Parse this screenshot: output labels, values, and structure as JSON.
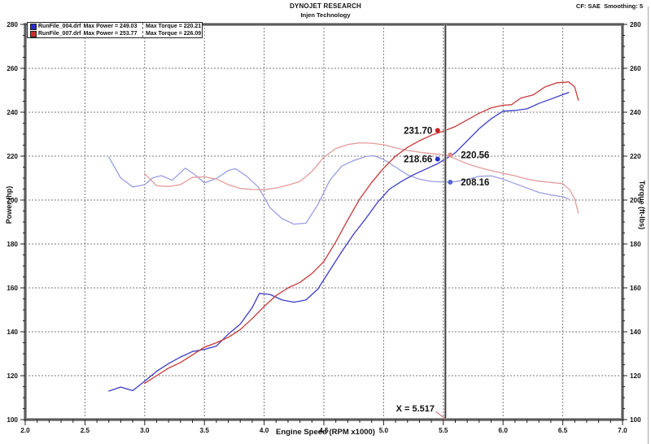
{
  "header": {
    "title": "DYNOJET RESEARCH",
    "subtitle": "Injen Technology",
    "top_right": "CF: SAE  Smoothing: 5"
  },
  "legend": {
    "rows": [
      {
        "swatch_color": "#2a2ad0",
        "file": "RunFile_004.drf",
        "power": "Max Power = 249.03",
        "torque": "Max Torque = 220.21"
      },
      {
        "swatch_color": "#d02a2a",
        "file": "RunFile_007.drf",
        "power": "Max Power = 253.77",
        "torque": "Max Torque = 226.09"
      }
    ]
  },
  "chart_data": {
    "type": "line",
    "title": "DYNOJET RESEARCH",
    "subtitle": "Injen Technology",
    "xlabel": "Engine Speed (RPM x1000)",
    "ylabel_left": "Power (hp)",
    "ylabel_right": "Torque (ft-lbs)",
    "xlim": [
      2.0,
      7.0
    ],
    "ylim": [
      100,
      280
    ],
    "x_major_ticks": [
      2.0,
      2.5,
      3.0,
      3.5,
      4.0,
      4.5,
      5.0,
      5.5,
      6.0,
      6.5,
      7.0
    ],
    "x_minor_step": 0.1,
    "y_major_ticks": [
      100,
      120,
      140,
      160,
      180,
      200,
      220,
      240,
      260,
      280
    ],
    "y_minor_step": 5,
    "grid": {
      "on": true,
      "style": "dashed",
      "color": "#787878"
    },
    "cursor": {
      "x": 5.517,
      "label": "X = 5.517"
    },
    "series": [
      {
        "name": "RunFile_004.drf Power",
        "unit": "hp",
        "axis": "left",
        "color": "#3c3cc8",
        "x": [
          2.7,
          2.8,
          2.9,
          3.0,
          3.1,
          3.2,
          3.3,
          3.4,
          3.5,
          3.6,
          3.7,
          3.8,
          3.9,
          3.96,
          4.05,
          4.15,
          4.25,
          4.35,
          4.45,
          4.55,
          4.65,
          4.75,
          4.85,
          4.95,
          5.05,
          5.15,
          5.25,
          5.35,
          5.45,
          5.517,
          5.6,
          5.7,
          5.8,
          5.9,
          6.0,
          6.1,
          6.2,
          6.3,
          6.4,
          6.5,
          6.55
        ],
        "y": [
          113.0,
          114.8,
          113.2,
          117.5,
          122.0,
          125.5,
          128.5,
          131.0,
          132.0,
          133.5,
          139.0,
          143.5,
          151.0,
          157.5,
          157.0,
          154.5,
          153.5,
          154.5,
          159.5,
          168.0,
          176.5,
          184.5,
          191.5,
          199.0,
          205.0,
          208.5,
          211.5,
          214.0,
          216.5,
          218.66,
          221.5,
          227.0,
          232.5,
          237.0,
          240.5,
          240.8,
          241.5,
          244.0,
          246.0,
          248.0,
          249.03
        ]
      },
      {
        "name": "RunFile_004.drf Torque",
        "unit": "ft-lbs",
        "axis": "right",
        "color": "#9b9fe0",
        "x": [
          2.7,
          2.8,
          2.9,
          3.0,
          3.07,
          3.14,
          3.23,
          3.34,
          3.42,
          3.5,
          3.6,
          3.7,
          3.76,
          3.85,
          3.95,
          4.05,
          4.15,
          4.25,
          4.35,
          4.45,
          4.55,
          4.65,
          4.75,
          4.85,
          4.92,
          5.0,
          5.1,
          5.2,
          5.3,
          5.4,
          5.517,
          5.6,
          5.7,
          5.8,
          5.9,
          6.0,
          6.1,
          6.2,
          6.3,
          6.4,
          6.5,
          6.55
        ],
        "y": [
          219.5,
          210.0,
          206.0,
          207.0,
          210.2,
          211.1,
          209.0,
          214.5,
          211.5,
          207.8,
          209.8,
          213.5,
          214.3,
          211.0,
          206.0,
          196.5,
          191.5,
          189.0,
          189.5,
          198.0,
          209.0,
          215.5,
          218.0,
          219.8,
          220.21,
          218.5,
          215.0,
          211.5,
          209.5,
          208.5,
          208.16,
          208.4,
          209.3,
          210.8,
          211.0,
          209.5,
          207.5,
          205.5,
          203.5,
          202.3,
          201.5,
          200.5
        ]
      },
      {
        "name": "RunFile_007.drf Power",
        "unit": "hp",
        "axis": "left",
        "color": "#c83a3a",
        "x": [
          3.0,
          3.1,
          3.2,
          3.3,
          3.4,
          3.5,
          3.6,
          3.7,
          3.8,
          3.9,
          4.0,
          4.1,
          4.2,
          4.3,
          4.4,
          4.5,
          4.6,
          4.7,
          4.8,
          4.9,
          5.0,
          5.1,
          5.2,
          5.3,
          5.4,
          5.517,
          5.6,
          5.7,
          5.8,
          5.9,
          6.0,
          6.07,
          6.15,
          6.25,
          6.35,
          6.45,
          6.55,
          6.6,
          6.63
        ],
        "y": [
          116.5,
          120.0,
          123.5,
          126.0,
          129.5,
          133.0,
          135.0,
          137.5,
          141.0,
          146.0,
          151.5,
          156.5,
          160.0,
          162.5,
          166.5,
          172.0,
          181.0,
          191.0,
          200.5,
          208.0,
          214.5,
          220.0,
          224.0,
          227.0,
          229.5,
          231.7,
          233.5,
          236.5,
          239.5,
          242.0,
          243.2,
          243.4,
          246.5,
          247.8,
          251.5,
          253.4,
          253.77,
          251.5,
          245.5
        ]
      },
      {
        "name": "RunFile_007.drf Torque",
        "unit": "ft-lbs",
        "axis": "right",
        "color": "#e39c9c",
        "x": [
          3.0,
          3.1,
          3.2,
          3.3,
          3.4,
          3.5,
          3.6,
          3.7,
          3.8,
          3.9,
          4.0,
          4.1,
          4.2,
          4.3,
          4.4,
          4.5,
          4.6,
          4.7,
          4.8,
          4.9,
          5.0,
          5.1,
          5.2,
          5.3,
          5.4,
          5.517,
          5.6,
          5.7,
          5.8,
          5.9,
          6.0,
          6.1,
          6.2,
          6.3,
          6.4,
          6.5,
          6.56,
          6.6,
          6.63
        ],
        "y": [
          212.0,
          206.5,
          206.2,
          207.0,
          210.3,
          210.6,
          209.6,
          207.0,
          205.3,
          204.8,
          204.7,
          205.5,
          206.8,
          208.5,
          213.0,
          219.5,
          223.5,
          225.3,
          226.09,
          225.9,
          225.2,
          223.8,
          222.6,
          221.8,
          221.2,
          220.56,
          218.8,
          216.5,
          214.8,
          213.4,
          212.2,
          211.0,
          209.6,
          208.6,
          208.0,
          207.5,
          204.5,
          200.5,
          194.0
        ]
      }
    ],
    "markers": [
      {
        "label": "231.70",
        "value": 231.7,
        "color": "#cc2222",
        "side": "left",
        "series": "RunFile_007.drf Power"
      },
      {
        "label": "218.66",
        "value": 218.66,
        "color": "#2233cc",
        "side": "left",
        "series": "RunFile_004.drf Power"
      },
      {
        "label": "220.56",
        "value": 220.56,
        "color": "#e08888",
        "side": "right",
        "series": "RunFile_007.drf Torque"
      },
      {
        "label": "208.16",
        "value": 208.16,
        "color": "#5566cc",
        "side": "right",
        "series": "RunFile_004.drf Torque"
      }
    ]
  }
}
